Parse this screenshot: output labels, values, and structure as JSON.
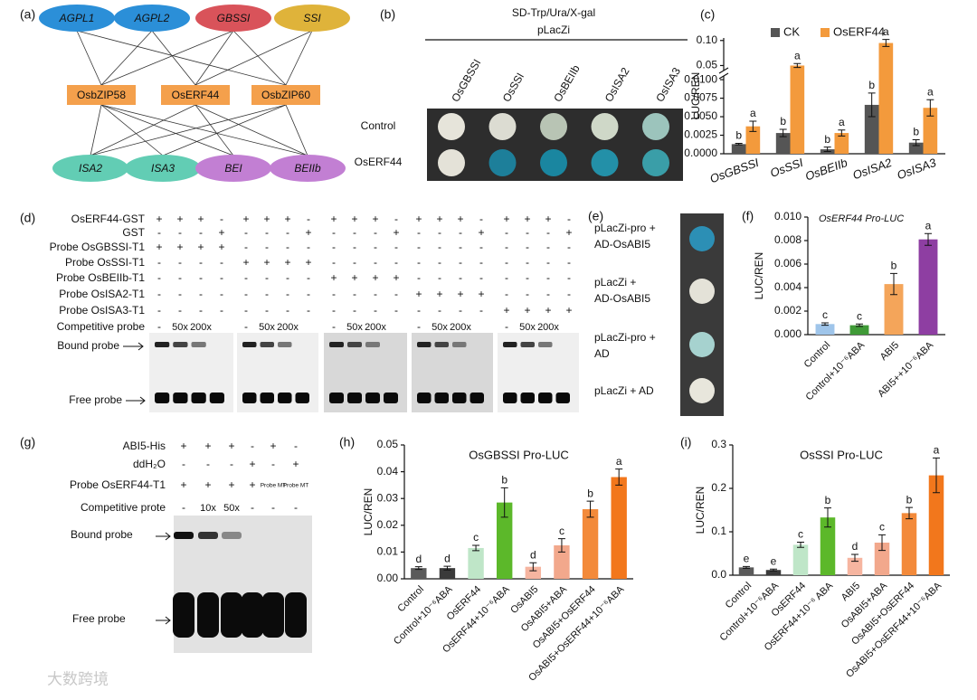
{
  "panel_labels": [
    "(a)",
    "(b)",
    "(c)",
    "(d)",
    "(e)",
    "(f)",
    "(g)",
    "(h)",
    "(i)"
  ],
  "network": {
    "top": [
      "AGPL1",
      "AGPL2",
      "GBSSI",
      "SSI"
    ],
    "middle": [
      "OsbZIP58",
      "OsERF44",
      "OsbZIP60"
    ],
    "bottom": [
      "ISA2",
      "ISA3",
      "BEI",
      "BEIIb"
    ]
  },
  "yeast_b": {
    "title": "SD-Trp/Ura/X-gal",
    "subtitle": "pLacZi",
    "columns": [
      "OsGBSSI",
      "OsSSI",
      "OsBEIIb",
      "OsISA2",
      "OsISA3"
    ],
    "rows": [
      "Control",
      "OsERF44"
    ]
  },
  "emsa_d": {
    "rows": [
      {
        "label": "OsERF44-GST",
        "lanes": [
          "+",
          "+",
          "+",
          "-",
          "+",
          "+",
          "+",
          "-",
          "+",
          "+",
          "+",
          "-",
          "+",
          "+",
          "+",
          "-",
          "+",
          "+",
          "+",
          "-"
        ]
      },
      {
        "label": "GST",
        "lanes": [
          "-",
          "-",
          "-",
          "+",
          "-",
          "-",
          "-",
          "+",
          "-",
          "-",
          "-",
          "+",
          "-",
          "-",
          "-",
          "+",
          "-",
          "-",
          "-",
          "+"
        ]
      },
      {
        "label": "Probe OsGBSSI-T1",
        "lanes": [
          "+",
          "+",
          "+",
          "+",
          "-",
          "-",
          "-",
          "-",
          "-",
          "-",
          "-",
          "-",
          "-",
          "-",
          "-",
          "-",
          "-",
          "-",
          "-",
          "-"
        ]
      },
      {
        "label": "Probe OsSSI-T1",
        "lanes": [
          "-",
          "-",
          "-",
          "-",
          "+",
          "+",
          "+",
          "+",
          "-",
          "-",
          "-",
          "-",
          "-",
          "-",
          "-",
          "-",
          "-",
          "-",
          "-",
          "-"
        ]
      },
      {
        "label": "Probe OsBEIIb-T1",
        "lanes": [
          "-",
          "-",
          "-",
          "-",
          "-",
          "-",
          "-",
          "-",
          "+",
          "+",
          "+",
          "+",
          "-",
          "-",
          "-",
          "-",
          "-",
          "-",
          "-",
          "-"
        ]
      },
      {
        "label": "Probe OsISA2-T1",
        "lanes": [
          "-",
          "-",
          "-",
          "-",
          "-",
          "-",
          "-",
          "-",
          "-",
          "-",
          "-",
          "-",
          "+",
          "+",
          "+",
          "+",
          "-",
          "-",
          "-",
          "-"
        ]
      },
      {
        "label": "Probe OsISA3-T1",
        "lanes": [
          "-",
          "-",
          "-",
          "-",
          "-",
          "-",
          "-",
          "-",
          "-",
          "-",
          "-",
          "-",
          "-",
          "-",
          "-",
          "-",
          "+",
          "+",
          "+",
          "+"
        ]
      },
      {
        "label": "Competitive probe",
        "lanes": [
          "-",
          "50x",
          "200x",
          null,
          "-",
          "50x",
          "200x",
          null,
          "-",
          "50x",
          "200x",
          null,
          "-",
          "50x",
          "200x",
          null,
          "-",
          "50x",
          "200x",
          null
        ]
      }
    ],
    "bound_label": "Bound probe",
    "free_label": "Free probe"
  },
  "yeast_e": {
    "labels": [
      [
        "pLacZi-pro +",
        "AD-OsABI5"
      ],
      [
        "pLacZi +",
        "AD-OsABI5"
      ],
      [
        "pLacZi-pro +",
        "AD"
      ],
      [
        "pLacZi + AD"
      ]
    ]
  },
  "emsa_g": {
    "rows": [
      {
        "label": "ABI5-His",
        "lanes": [
          "+",
          "+",
          "+",
          "-",
          "+",
          "-"
        ]
      },
      {
        "label": "ddH₂O",
        "lanes": [
          "-",
          "-",
          "-",
          "+",
          "-",
          "+"
        ]
      },
      {
        "label": "Probe OsERF44-T1",
        "lanes": [
          "+",
          "+",
          "+",
          "+",
          "Probe MT",
          "Probe MT"
        ]
      },
      {
        "label": "Competitive prote",
        "lanes": [
          "-",
          "10x",
          "50x",
          "-",
          "-",
          "-"
        ]
      }
    ],
    "bound_label": "Bound probe",
    "free_label": "Free probe"
  },
  "chart_data": [
    {
      "type": "bar",
      "ylabel": "LUC/REN",
      "categories": [
        "OsGBSSI",
        "OsSSI",
        "OsBEIIb",
        "OsISA2",
        "OsISA3"
      ],
      "series": [
        {
          "name": "CK",
          "color": "#555555",
          "values": [
            0.0013,
            0.0028,
            0.0006,
            0.0066,
            0.0015
          ],
          "errors": [
            0.0001,
            0.0005,
            0.0003,
            0.0016,
            0.0004
          ],
          "letters": [
            "b",
            "b",
            "b",
            "b",
            "b"
          ]
        },
        {
          "name": "OsERF44",
          "color": "#f39a3c",
          "values": [
            0.0037,
            0.05,
            0.0028,
            0.095,
            0.0062
          ],
          "errors": [
            0.0007,
            0.004,
            0.0004,
            0.007,
            0.0011
          ],
          "letters": [
            "a",
            "a",
            "a",
            "a",
            "a"
          ]
        }
      ],
      "ylim": [
        0,
        0.105
      ],
      "ybreak": [
        0.0105,
        0.04
      ],
      "yticks": [
        {
          "value": 0,
          "label": "0.0000"
        },
        0.0025,
        {
          "value": 0.005,
          "label": "0.0050"
        },
        0.0075,
        {
          "value": 0.01,
          "label": "0.0100"
        },
        0.05,
        {
          "value": 0.1,
          "label": "0.10"
        }
      ],
      "legend": "top"
    },
    {
      "type": "bar",
      "title": "OsERF44 Pro-LUC",
      "ylabel": "LUC/REN",
      "categories": [
        "Control",
        "Control+10⁻⁶ABA",
        "ABI5",
        "ABI5++10⁻⁶ABA"
      ],
      "series": [
        {
          "colors": [
            "#9fc5ea",
            "#3f9a37",
            "#f4a55a",
            "#8e3ea2"
          ],
          "values": [
            0.0009,
            0.0008,
            0.0043,
            0.0081
          ],
          "errors": [
            0.0001,
            0.0001,
            0.0009,
            0.0005
          ],
          "letters": [
            "c",
            "c",
            "b",
            "a"
          ]
        }
      ],
      "ylim": [
        0,
        0.01
      ],
      "yticks": [
        {
          "value": 0,
          "label": "0.000"
        },
        0.002,
        0.004,
        0.006,
        0.008,
        {
          "value": 0.01,
          "label": "0.010"
        }
      ]
    },
    {
      "type": "bar",
      "title": "OsGBSSI Pro-LUC",
      "ylabel": "LUC/REN",
      "categories": [
        "Control",
        "Control+10⁻⁶ABA",
        "OsERF44",
        "OsERF44+10⁻⁶ABA",
        "OsABI5",
        "OsABI5+ABA",
        "OsABI5+OsERF44",
        "OsABI5+OsERF44+10⁻⁶ABA"
      ],
      "series": [
        {
          "colors": [
            "#5a5a5a",
            "#3a3a3a",
            "#bfe6c8",
            "#5cb82a",
            "#f6b5a0",
            "#f2a88c",
            "#f38a3a",
            "#f2771c"
          ],
          "values": [
            0.004,
            0.004,
            0.0115,
            0.0285,
            0.0045,
            0.0125,
            0.026,
            0.038
          ],
          "errors": [
            0.0005,
            0.0007,
            0.001,
            0.0055,
            0.0015,
            0.0025,
            0.003,
            0.003
          ],
          "letters": [
            "d",
            "d",
            "c",
            "b",
            "d",
            "c",
            "b",
            "a"
          ]
        }
      ],
      "ylim": [
        0,
        0.05
      ],
      "yticks": [
        {
          "value": 0,
          "label": "0.00"
        },
        0.01,
        0.02,
        0.03,
        0.04,
        0.05
      ]
    },
    {
      "type": "bar",
      "title": "OsSSI Pro-LUC",
      "ylabel": "LUC/REN",
      "categories": [
        "Control",
        "Control+10⁻⁶ABA",
        "OsERF44",
        "OsERF44+10⁻⁶ ABA",
        "ABI5",
        "OsABI5+ABA",
        "OsABI5+OsERF44",
        "OsABI5+OsERF44+10⁻⁶ABA"
      ],
      "series": [
        {
          "colors": [
            "#5a5a5a",
            "#3a3a3a",
            "#bfe6c8",
            "#5cb82a",
            "#f6b5a0",
            "#f2a88c",
            "#f38a3a",
            "#f2771c"
          ],
          "values": [
            0.018,
            0.012,
            0.07,
            0.133,
            0.04,
            0.075,
            0.143,
            0.23
          ],
          "errors": [
            0.002,
            0.002,
            0.006,
            0.022,
            0.008,
            0.018,
            0.013,
            0.04
          ],
          "letters": [
            "e",
            "e",
            "c",
            "b",
            "d",
            "c",
            "b",
            "a"
          ]
        }
      ],
      "ylim": [
        0,
        0.3
      ],
      "yticks": [
        {
          "value": 0,
          "label": "0.0"
        },
        0.1,
        0.2,
        0.3
      ]
    }
  ],
  "watermark": "大数跨境"
}
